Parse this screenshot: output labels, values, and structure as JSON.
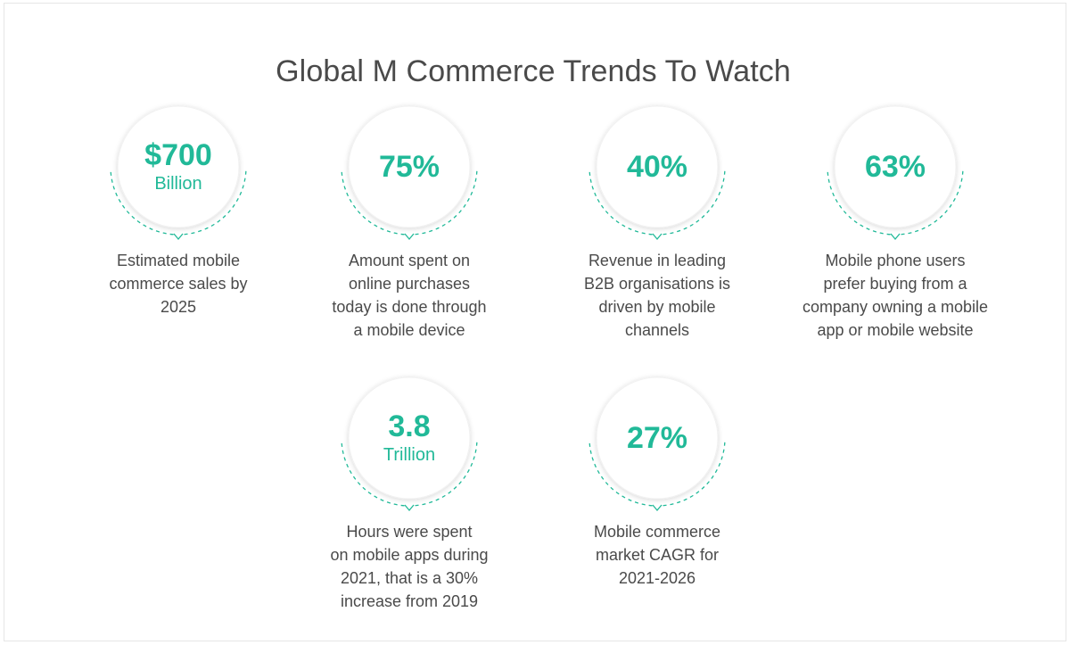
{
  "title": "Global M Commerce Trends To Watch",
  "accent_color": "#21b998",
  "stats": [
    {
      "value": "$700",
      "unit": "Billion",
      "description": [
        "Estimated mobile",
        "commerce sales by",
        "2025"
      ]
    },
    {
      "value": "75%",
      "unit": "",
      "description": [
        "Amount spent on",
        "online purchases",
        "today is done through",
        "a mobile device"
      ]
    },
    {
      "value": "40%",
      "unit": "",
      "description": [
        "Revenue in leading",
        "B2B organisations is",
        "driven by mobile",
        "channels"
      ]
    },
    {
      "value": "63%",
      "unit": "",
      "description": [
        "Mobile phone users",
        "prefer buying from a",
        "company owning a mobile",
        "app or mobile website"
      ]
    },
    {
      "value": "3.8",
      "unit": "Trillion",
      "description": [
        "Hours were spent",
        "on mobile apps during",
        "2021, that is a 30%",
        "increase from 2019"
      ]
    },
    {
      "value": "27%",
      "unit": "",
      "description": [
        "Mobile commerce",
        "market CAGR for",
        "2021-2026"
      ]
    }
  ]
}
